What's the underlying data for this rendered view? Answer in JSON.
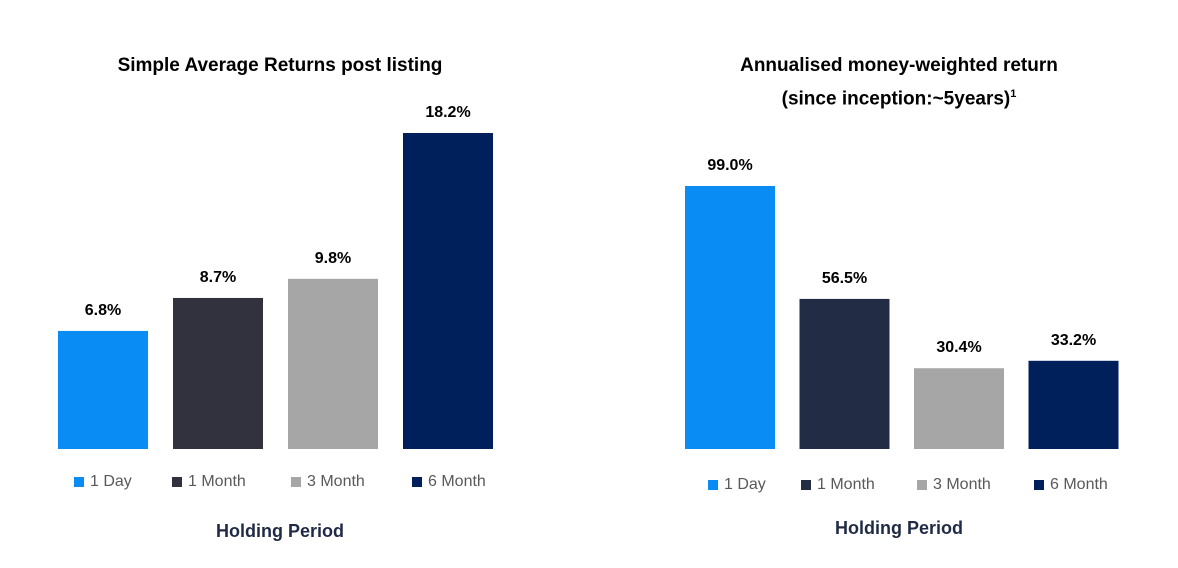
{
  "chart_data": [
    {
      "type": "bar",
      "title": "Simple Average Returns post listing",
      "xlabel": "Holding Period",
      "ylabel": "",
      "categories": [
        "1 Day",
        "1 Month",
        "3 Month",
        "6 Month"
      ],
      "values": [
        6.8,
        8.7,
        9.8,
        18.2
      ],
      "value_labels": [
        "6.8%",
        "8.7%",
        "9.8%",
        "18.2%"
      ],
      "colors": [
        "#0a8cf5",
        "#31323d",
        "#a6a6a6",
        "#00205b"
      ],
      "ylim": [
        0,
        18.2
      ],
      "legend_position": "bottom",
      "grid": false
    },
    {
      "type": "bar",
      "title": "Annualised money-weighted return",
      "subtitle": "(since inception:~5years)",
      "subtitle_sup": "1",
      "xlabel": "Holding Period",
      "ylabel": "",
      "categories": [
        "1 Day",
        "1 Month",
        "3 Month",
        "6 Month"
      ],
      "values": [
        99.0,
        56.5,
        30.4,
        33.2
      ],
      "value_labels": [
        "99.0%",
        "56.5%",
        "30.4%",
        "33.2%"
      ],
      "colors": [
        "#0a8cf5",
        "#222c45",
        "#a6a6a6",
        "#00205b"
      ],
      "ylim": [
        0,
        99.0
      ],
      "legend_position": "bottom",
      "grid": false
    }
  ]
}
